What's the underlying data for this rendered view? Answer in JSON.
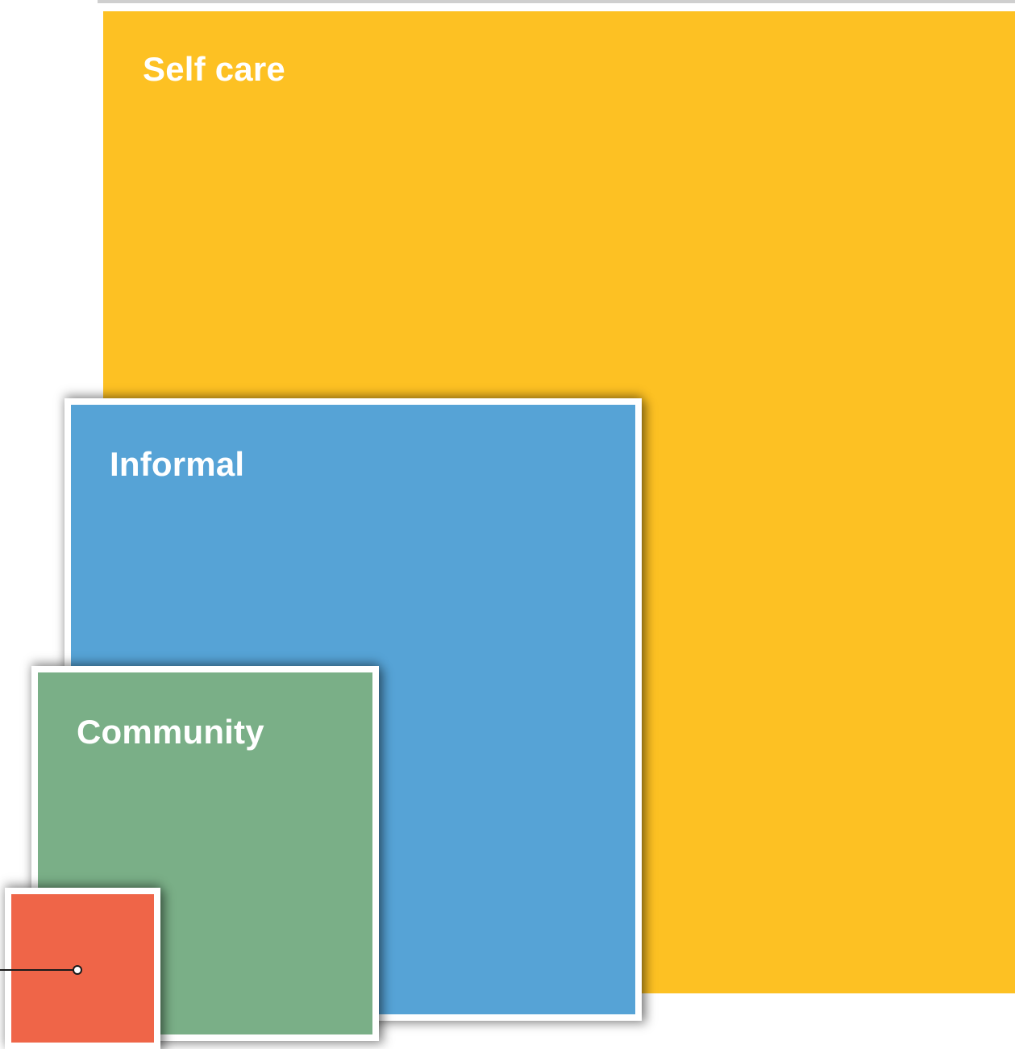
{
  "diagram": {
    "boxes": [
      {
        "id": "self-care",
        "label": "Self care",
        "color": "#FDC123"
      },
      {
        "id": "informal",
        "label": "Informal",
        "color": "#56A3D6"
      },
      {
        "id": "community",
        "label": "Community",
        "color": "#7AAF87"
      },
      {
        "id": "unlabeled-box",
        "label": "",
        "color": "#EF6548"
      }
    ],
    "pointer": {
      "color": "#1a1a1a"
    }
  }
}
